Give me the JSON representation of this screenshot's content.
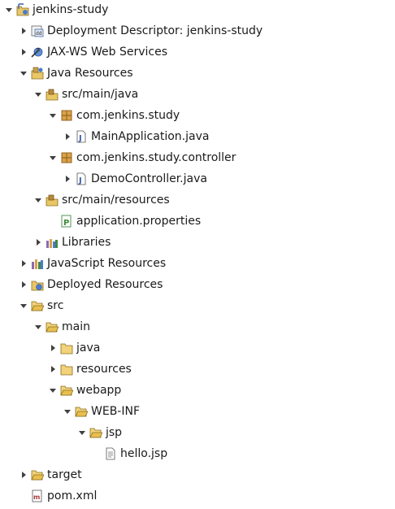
{
  "tree": {
    "project": "jenkins-study",
    "deployment_descriptor": "Deployment Descriptor: jenkins-study",
    "jaxws": "JAX-WS Web Services",
    "java_resources": "Java Resources",
    "src_main_java": "src/main/java",
    "pkg_study": "com.jenkins.study",
    "main_application": "MainApplication.java",
    "pkg_controller": "com.jenkins.study.controller",
    "demo_controller": "DemoController.java",
    "src_main_resources": "src/main/resources",
    "application_properties": "application.properties",
    "libraries": "Libraries",
    "javascript_resources": "JavaScript Resources",
    "deployed_resources": "Deployed Resources",
    "src": "src",
    "main": "main",
    "java": "java",
    "resources": "resources",
    "webapp": "webapp",
    "web_inf": "WEB-INF",
    "jsp": "jsp",
    "hello_jsp": "hello.jsp",
    "target": "target",
    "pom": "pom.xml"
  },
  "icons": {
    "project": "web-project-icon",
    "deployment_descriptor": "deployment-descriptor-icon",
    "jaxws": "web-services-icon",
    "java_resources": "java-resources-icon",
    "source_folder": "source-folder-icon",
    "package": "package-icon",
    "java_file": "java-file-icon",
    "properties_file": "properties-file-icon",
    "libraries": "libraries-icon",
    "javascript_resources": "javascript-resources-icon",
    "deployed_resources": "deployed-resources-icon",
    "folder": "folder-icon",
    "jsp_file": "jsp-file-icon",
    "xml_file": "xml-file-icon"
  }
}
